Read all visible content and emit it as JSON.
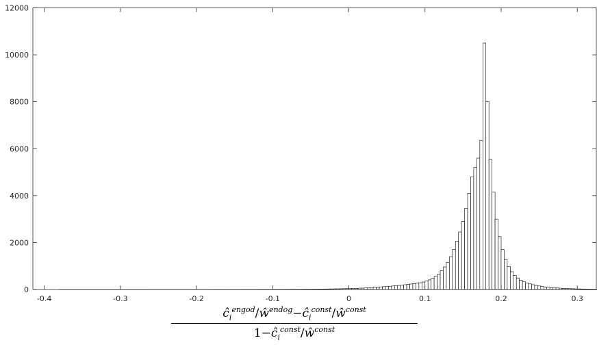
{
  "chart_data": {
    "type": "bar",
    "title": "",
    "xlabel": "ĉ_i^{engod} / ŵ^{endog} − ĉ_i^{const} / ŵ^{const} over 1 − ĉ_i^{const} / ŵ^{const}",
    "ylabel": "",
    "xlim": [
      -0.415,
      0.325
    ],
    "ylim": [
      0,
      12000
    ],
    "grid": false,
    "x_ticks": [
      -0.4,
      -0.3,
      -0.2,
      -0.1,
      0,
      0.1,
      0.2,
      0.3
    ],
    "x_tick_labels": [
      "-0.4",
      "-0.3",
      "-0.2",
      "-0.1",
      "0",
      "0.1",
      "0.2",
      "0.3"
    ],
    "y_ticks": [
      0,
      2000,
      4000,
      6000,
      8000,
      10000,
      12000
    ],
    "y_tick_labels": [
      "0",
      "2000",
      "4000",
      "6000",
      "8000",
      "10000",
      "12000"
    ],
    "bin_start": -0.38,
    "bin_width": 0.004,
    "values": [
      5,
      5,
      5,
      5,
      5,
      5,
      5,
      5,
      5,
      5,
      5,
      5,
      5,
      5,
      5,
      5,
      5,
      5,
      5,
      5,
      5,
      5,
      5,
      5,
      5,
      5,
      5,
      5,
      5,
      5,
      6,
      6,
      6,
      6,
      6,
      6,
      6,
      6,
      6,
      6,
      6,
      6,
      6,
      6,
      6,
      6,
      6,
      6,
      6,
      6,
      7,
      7,
      7,
      7,
      7,
      7,
      7,
      7,
      7,
      7,
      8,
      8,
      8,
      8,
      8,
      9,
      9,
      9,
      9,
      9,
      10,
      10,
      10,
      11,
      11,
      11,
      12,
      12,
      13,
      13,
      14,
      15,
      16,
      17,
      18,
      19,
      20,
      22,
      24,
      26,
      28,
      30,
      32,
      35,
      38,
      40,
      45,
      50,
      55,
      60,
      65,
      70,
      80,
      90,
      100,
      110,
      120,
      130,
      140,
      150,
      160,
      175,
      190,
      205,
      220,
      235,
      250,
      270,
      290,
      320,
      360,
      410,
      480,
      560,
      660,
      800,
      960,
      1160,
      1400,
      1700,
      2050,
      2450,
      2900,
      3450,
      4100,
      4800,
      5200,
      5600,
      6350,
      10500,
      8000,
      5550,
      4150,
      3000,
      2250,
      1700,
      1280,
      980,
      760,
      600,
      490,
      400,
      330,
      280,
      240,
      205,
      175,
      150,
      128,
      110,
      95,
      82,
      72,
      63,
      55,
      48,
      42,
      37,
      33,
      29,
      26,
      23,
      21,
      19,
      17,
      16,
      15,
      14,
      13,
      12,
      11,
      10,
      10,
      9,
      9,
      8,
      8,
      8,
      7,
      7,
      7,
      7,
      6,
      6,
      6,
      6,
      6,
      6,
      6,
      6
    ]
  }
}
